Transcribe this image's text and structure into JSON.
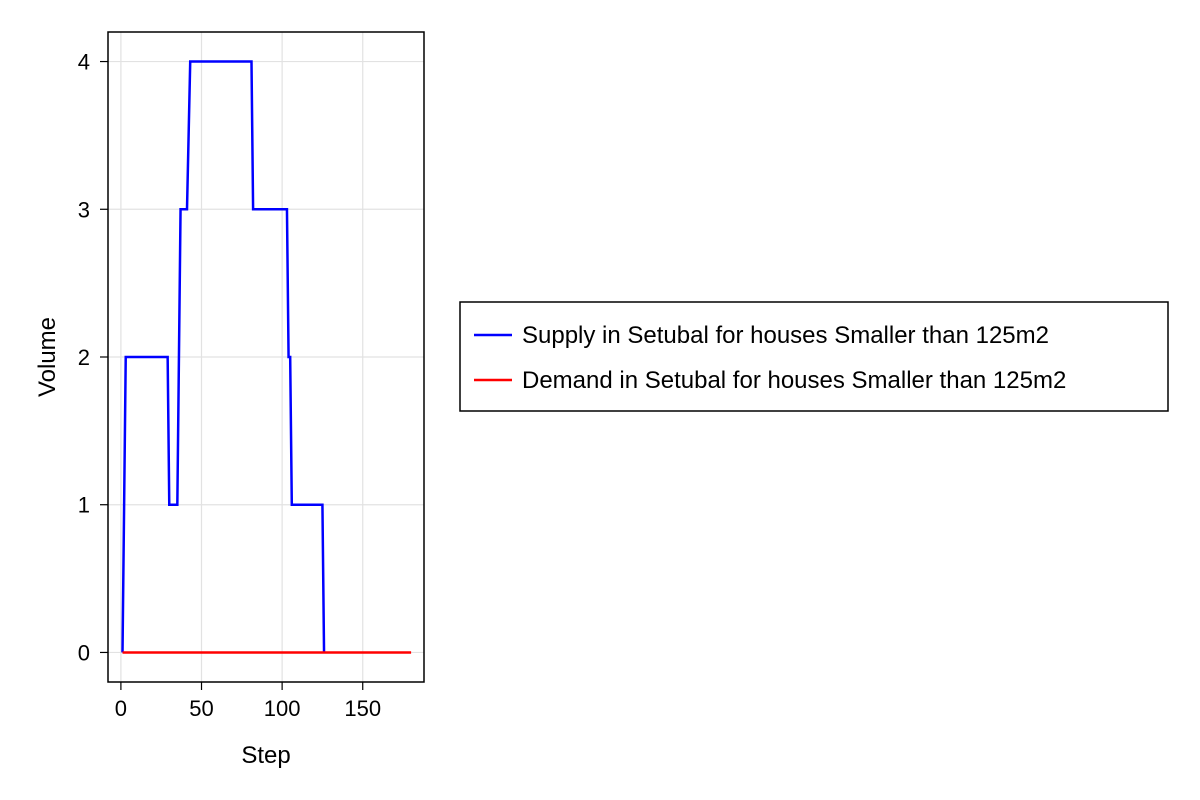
{
  "chart_data": {
    "type": "line",
    "title": "",
    "xlabel": "Step",
    "ylabel": "Volume",
    "xlim": [
      -8,
      188
    ],
    "ylim": [
      -0.2,
      4.2
    ],
    "xticks": [
      0,
      50,
      100,
      150
    ],
    "yticks": [
      0,
      1,
      2,
      3,
      4
    ],
    "xtick_labels": [
      "0",
      "50",
      "100",
      "150"
    ],
    "ytick_labels": [
      "0",
      "1",
      "2",
      "3",
      "4"
    ],
    "grid": true,
    "legend_position": "right",
    "series": [
      {
        "name": "Supply in Setubal for houses Smaller than 125m2",
        "color": "#0000ff",
        "x": [
          1,
          3,
          29,
          30,
          35,
          37,
          41,
          43,
          81,
          82,
          103,
          104,
          105,
          106,
          125,
          126
        ],
        "y": [
          0,
          2,
          2,
          1,
          1,
          3,
          3,
          4,
          4,
          3,
          3,
          2,
          2,
          1,
          1,
          0
        ]
      },
      {
        "name": "Demand in Setubal for houses Smaller than 125m2",
        "color": "#ff0000",
        "x": [
          1,
          180
        ],
        "y": [
          0,
          0
        ]
      }
    ]
  }
}
